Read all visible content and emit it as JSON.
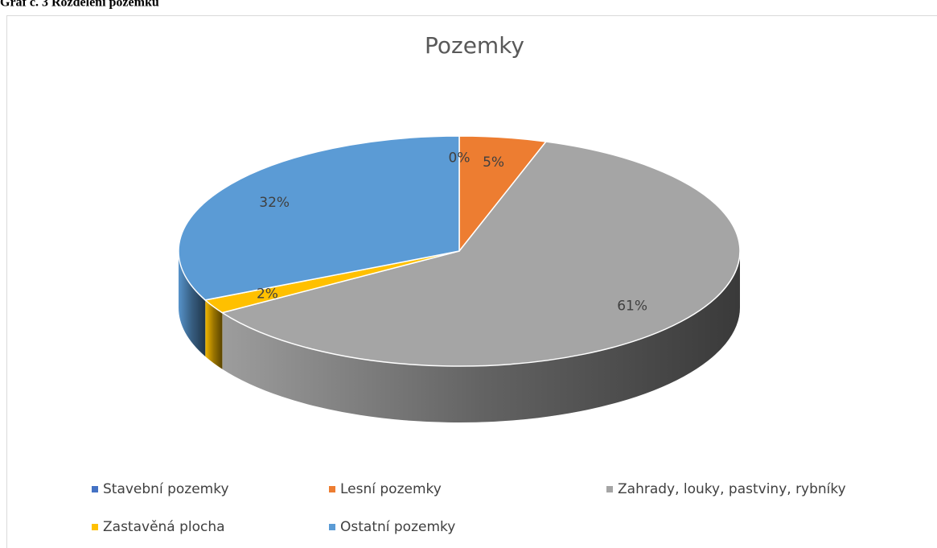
{
  "caption": "Graf č. 3 Rozdělení pozemků",
  "chart_data": {
    "type": "pie",
    "title": "Pozemky",
    "categories": [
      "Stavební pozemky",
      "Lesní pozemky",
      "Zahrady, louky, pastviny, rybníky",
      "Zastavěná plocha",
      "Ostatní pozemky"
    ],
    "values": [
      0,
      5,
      61,
      2,
      32
    ],
    "value_labels": [
      "0%",
      "5%",
      "61%",
      "2%",
      "32%"
    ],
    "colors": [
      "#4472c4",
      "#ed7d31",
      "#a5a5a5",
      "#ffc000",
      "#5b9bd5"
    ],
    "legend": "bottom"
  }
}
